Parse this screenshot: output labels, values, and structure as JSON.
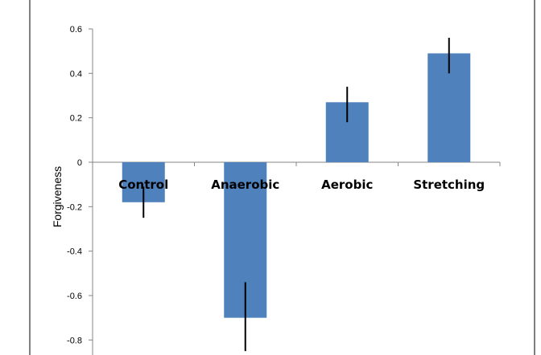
{
  "chart_data": {
    "type": "bar",
    "title": "",
    "xlabel": "",
    "ylabel": "Forgiveness",
    "categories": [
      "Control",
      "Anaerobic",
      "Aerobic",
      "Stretching"
    ],
    "series": [
      {
        "values": [
          -0.18,
          -0.7,
          0.27,
          0.49
        ],
        "error_low": [
          -0.25,
          -0.85,
          0.18,
          0.4
        ],
        "error_high": [
          -0.11,
          -0.54,
          0.34,
          0.56
        ]
      }
    ],
    "ylim": [
      -0.85,
      0.6
    ],
    "yticks": [
      "0.6",
      "0.4",
      "0.2",
      "0",
      "-0.2",
      "-0.4",
      "-0.6",
      "-0.8"
    ],
    "grid": false,
    "legend": "none",
    "colors": {
      "bar": "#4f81bd",
      "error_bar": "#000000",
      "axis": "#868686",
      "frame": "#000000"
    }
  }
}
